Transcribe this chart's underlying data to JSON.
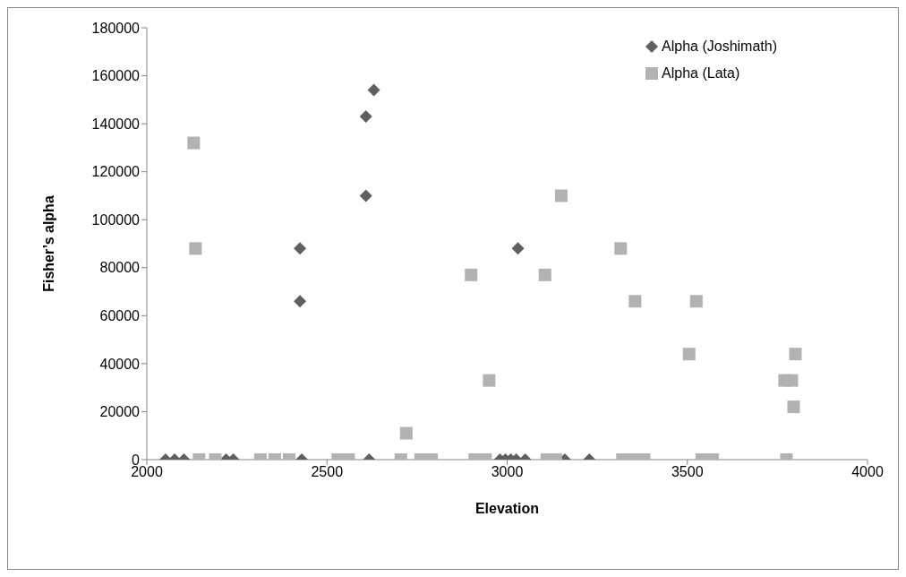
{
  "chart_data": {
    "type": "scatter",
    "xlabel": "Elevation",
    "ylabel": "Fisher’s alpha",
    "legend": "top right",
    "xlim": [
      2000,
      4000
    ],
    "xticks": [
      2000,
      2500,
      3000,
      3500,
      4000
    ],
    "ylim": [
      0,
      180000
    ],
    "yticks": [
      0,
      20000,
      40000,
      60000,
      80000,
      100000,
      120000,
      140000,
      160000,
      180000
    ],
    "grid": false,
    "series": [
      {
        "name": "Alpha (Joshimath)",
        "color": "#5f5f5f",
        "marker": "diamond",
        "x": [
          2052,
          2077,
          2103,
          2220,
          2240,
          2430,
          2617,
          2980,
          2995,
          3010,
          3025,
          3050,
          3160,
          3228,
          2425,
          2425,
          2608,
          2608,
          2630,
          3030
        ],
        "values": [
          0,
          0,
          0,
          0,
          0,
          0,
          0,
          0,
          0,
          0,
          0,
          0,
          0,
          0,
          88000,
          66000,
          110000,
          143000,
          154000,
          88000
        ]
      },
      {
        "name": "Alpha (Lata)",
        "color": "#b2b2b2",
        "marker": "square",
        "x": [
          2145,
          2190,
          2315,
          2355,
          2395,
          2530,
          2560,
          2705,
          2760,
          2790,
          2910,
          2940,
          3110,
          3135,
          3320,
          3350,
          3380,
          3540,
          3570,
          3775,
          2130,
          2135,
          2720,
          2900,
          2950,
          3105,
          3150,
          3315,
          3355,
          3505,
          3525,
          3770,
          3790,
          3800,
          3795
        ],
        "values": [
          0,
          0,
          0,
          0,
          0,
          0,
          0,
          0,
          0,
          0,
          0,
          0,
          0,
          0,
          0,
          0,
          0,
          0,
          0,
          0,
          132000,
          88000,
          11000,
          77000,
          33000,
          77000,
          110000,
          88000,
          66000,
          44000,
          66000,
          33000,
          33000,
          44000,
          22000
        ]
      }
    ]
  }
}
